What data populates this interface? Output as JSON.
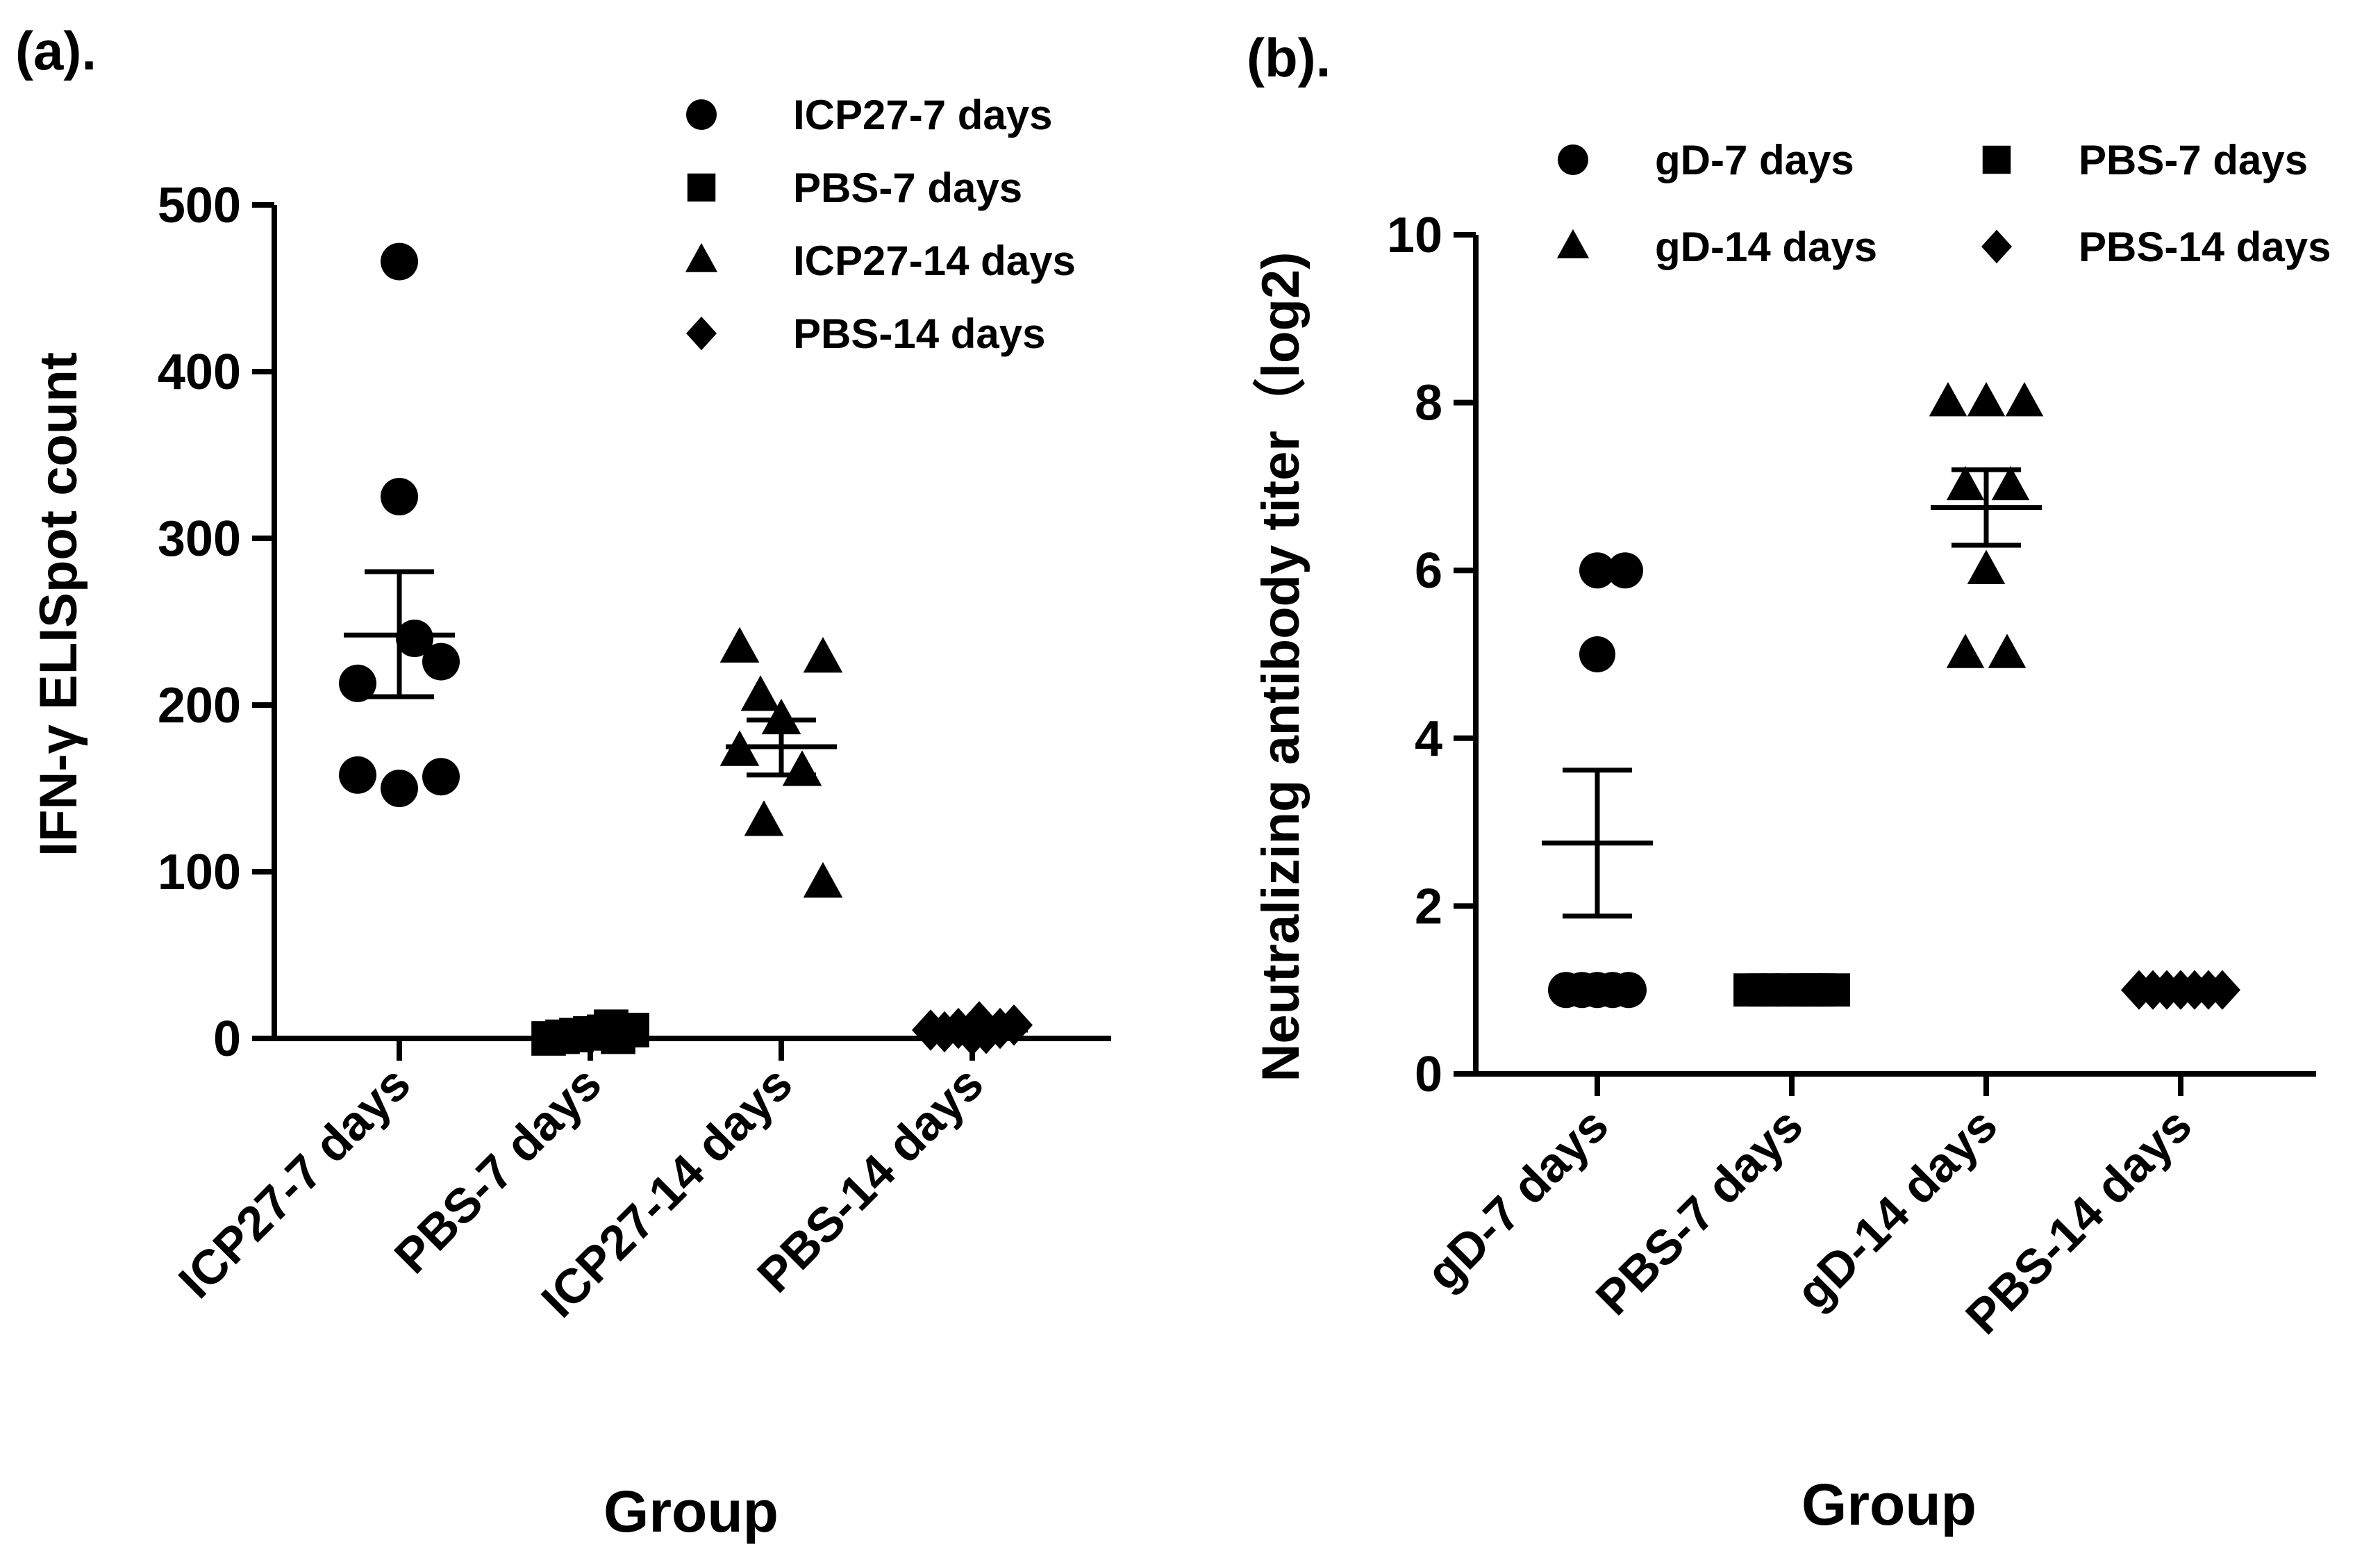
{
  "chart_data": [
    {
      "type": "scatter",
      "panel_label": "(a).",
      "ylabel": "IFN-γ ELISpot count",
      "xlabel": "Group",
      "ylim": [
        0,
        500
      ],
      "yticks": [
        0,
        100,
        200,
        300,
        400,
        500
      ],
      "categories": [
        "ICP27-7 days",
        "PBS-7 days",
        "ICP27-14 days",
        "PBS-14 days"
      ],
      "legend": {
        "placement": "top-right",
        "entries": [
          {
            "label": "ICP27-7 days",
            "marker": "circle"
          },
          {
            "label": "PBS-7 days",
            "marker": "square"
          },
          {
            "label": "ICP27-14 days",
            "marker": "triangle"
          },
          {
            "label": "PBS-14 days",
            "marker": "diamond"
          }
        ]
      },
      "series": [
        {
          "name": "ICP27-7 days",
          "marker": "circle",
          "values": [
            466,
            325,
            240,
            226,
            213,
            158,
            157,
            150
          ],
          "mean": 242,
          "sem_low": 205,
          "sem_high": 280
        },
        {
          "name": "PBS-7 days",
          "marker": "square",
          "values": [
            0,
            1,
            2,
            3,
            4,
            1,
            5,
            7
          ],
          "mean": 2,
          "sem_low": 1,
          "sem_high": 3
        },
        {
          "name": "ICP27-14 days",
          "marker": "triangle",
          "values": [
            234,
            228,
            205,
            191,
            172,
            160,
            130,
            93
          ],
          "mean": 175,
          "sem_low": 158,
          "sem_high": 191
        },
        {
          "name": "PBS-14 days",
          "marker": "diamond",
          "values": [
            5,
            4,
            6,
            2,
            3,
            6,
            8,
            10
          ],
          "mean": 5,
          "sem_low": 4,
          "sem_high": 6
        }
      ]
    },
    {
      "type": "scatter",
      "panel_label": "(b).",
      "ylabel": "Neutralizing antibody titer（log2)",
      "xlabel": "Group",
      "ylim": [
        0,
        10
      ],
      "yticks": [
        0,
        2,
        4,
        6,
        8,
        10
      ],
      "categories": [
        "gD-7 days",
        "PBS-7 days",
        "gD-14 days",
        "PBS-14 days"
      ],
      "legend": {
        "placement": "top",
        "entries": [
          {
            "label": "gD-7 days",
            "marker": "circle"
          },
          {
            "label": "PBS-7 days",
            "marker": "square"
          },
          {
            "label": "gD-14 days",
            "marker": "triangle"
          },
          {
            "label": "PBS-14 days",
            "marker": "diamond"
          }
        ]
      },
      "series": [
        {
          "name": "gD-7 days",
          "marker": "circle",
          "values": [
            6,
            6,
            5,
            1,
            1,
            1,
            1,
            1
          ],
          "mean": 2.75,
          "sem_low": 1.88,
          "sem_high": 3.62
        },
        {
          "name": "PBS-7 days",
          "marker": "square",
          "values": [
            1,
            1,
            1,
            1,
            1,
            1,
            1,
            1
          ],
          "mean": 1,
          "sem_low": 1,
          "sem_high": 1
        },
        {
          "name": "gD-14 days",
          "marker": "triangle",
          "values": [
            8,
            8,
            8,
            7,
            7,
            6,
            5,
            5
          ],
          "mean": 6.75,
          "sem_low": 6.3,
          "sem_high": 7.2
        },
        {
          "name": "PBS-14 days",
          "marker": "diamond",
          "values": [
            1,
            1,
            1,
            1,
            1,
            1,
            1,
            1
          ],
          "mean": 1,
          "sem_low": 1,
          "sem_high": 1
        }
      ]
    }
  ]
}
